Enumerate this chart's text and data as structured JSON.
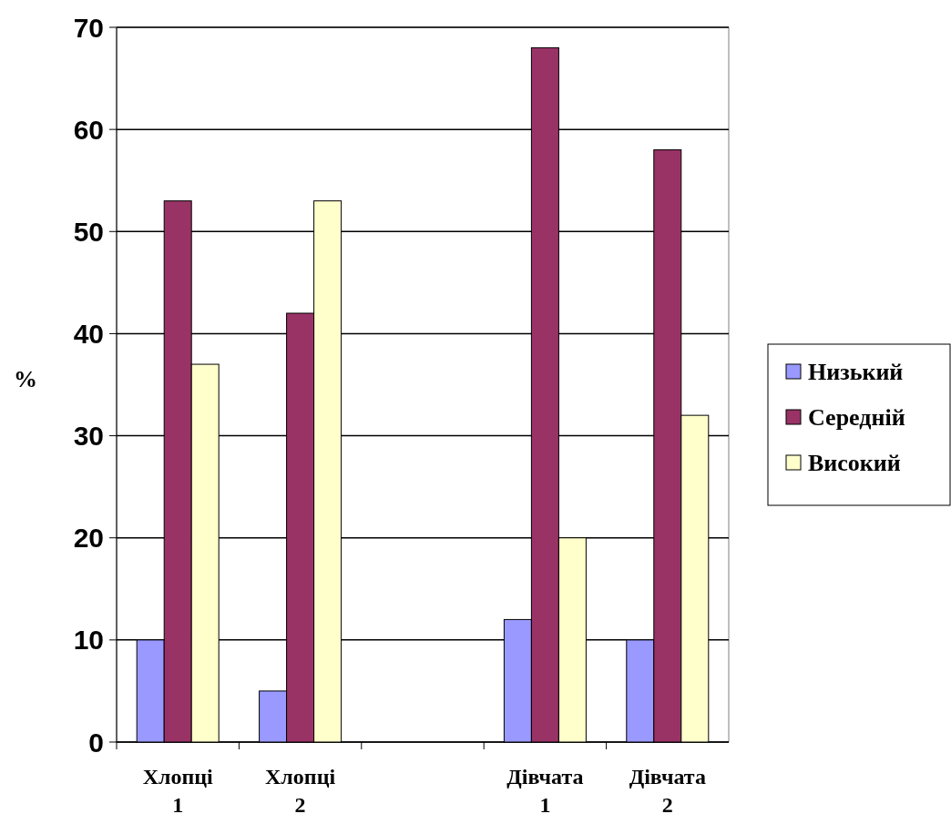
{
  "chart_data": {
    "type": "bar",
    "ylabel": "%",
    "categories": [
      "Хлопці 1",
      "Хлопці 2",
      null,
      "Дівчата 1",
      "Дівчата 2"
    ],
    "series": [
      {
        "name": "Низький",
        "color": "#9999ff",
        "values": [
          10,
          5,
          null,
          12,
          10
        ]
      },
      {
        "name": "Середній",
        "color": "#993366",
        "values": [
          53,
          42,
          null,
          68,
          58
        ]
      },
      {
        "name": "Високий",
        "color": "#ffffcc",
        "values": [
          37,
          53,
          null,
          20,
          32
        ]
      }
    ],
    "ylim": [
      0,
      70
    ],
    "yticks": [
      0,
      10,
      20,
      30,
      40,
      50,
      60,
      70
    ],
    "grid": "y",
    "legend": "right"
  }
}
